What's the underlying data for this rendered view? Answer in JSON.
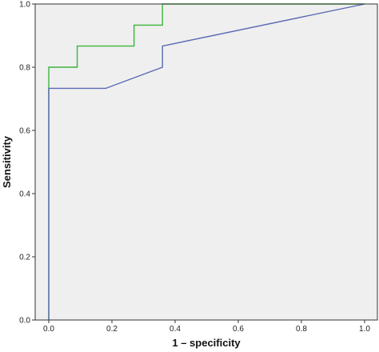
{
  "chart_data": {
    "type": "line",
    "title": "",
    "xlabel": "1 – specificity",
    "ylabel": "Sensitivity",
    "xlim": [
      0,
      1.0
    ],
    "ylim": [
      0,
      1.0
    ],
    "x_ticks": [
      "0.0",
      "0.2",
      "0.4",
      "0.6",
      "0.8",
      "1.0"
    ],
    "y_ticks": [
      "0.0",
      "0.2",
      "0.4",
      "0.6",
      "0.8",
      "1.0"
    ],
    "grid": false,
    "legend": "none",
    "background_color": "#efefef",
    "series": [
      {
        "color": "#3cb43c",
        "x": [
          0.0,
          0.0,
          0.0,
          0.09,
          0.09,
          0.27,
          0.27,
          0.36,
          0.36,
          1.0
        ],
        "y": [
          0.0,
          0.733,
          0.8,
          0.8,
          0.867,
          0.867,
          0.933,
          0.933,
          1.0,
          1.0
        ]
      },
      {
        "color": "#5a6ab4",
        "x": [
          0.0,
          0.0,
          0.18,
          0.36,
          0.36,
          1.0
        ],
        "y": [
          0.0,
          0.733,
          0.733,
          0.8,
          0.867,
          1.0
        ]
      }
    ]
  }
}
